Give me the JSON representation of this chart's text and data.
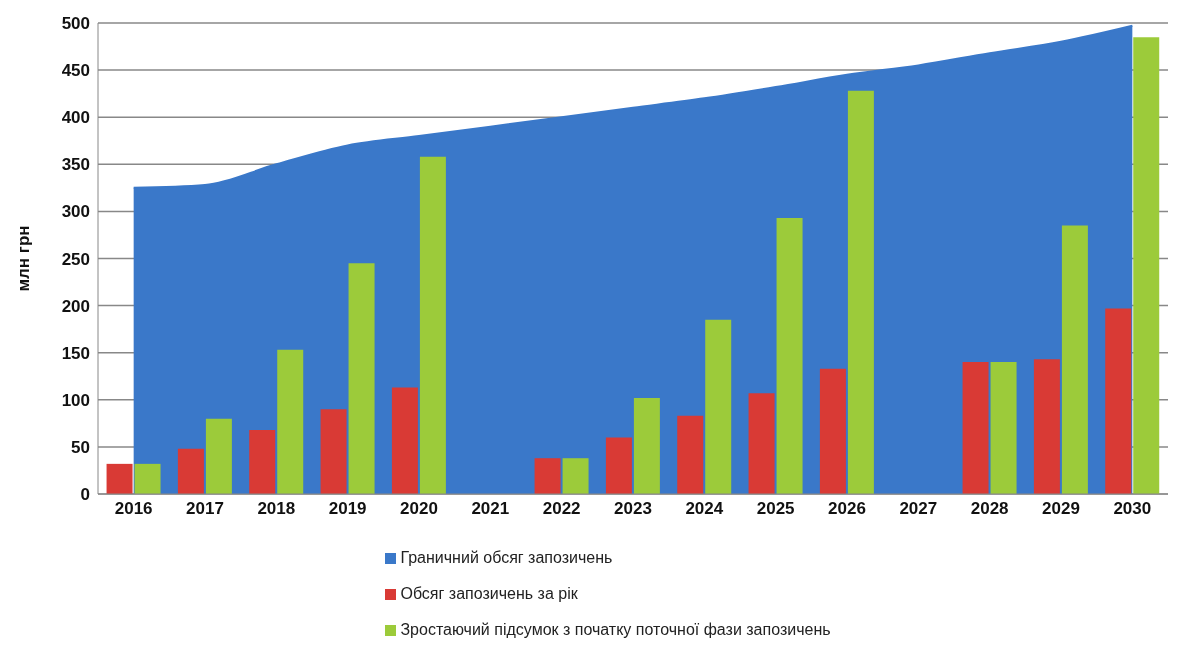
{
  "chart_data": {
    "type": "bar",
    "ylabel": "млн грн",
    "categories": [
      "2016",
      "2017",
      "2018",
      "2019",
      "2020",
      "2021",
      "2022",
      "2023",
      "2024",
      "2025",
      "2026",
      "2027",
      "2028",
      "2029",
      "2030"
    ],
    "series": [
      {
        "name": "Граничний обсяг запозичень",
        "type": "area",
        "color": "#3a78c9",
        "values": [
          325,
          328,
          350,
          370,
          380,
          390,
          400,
          410,
          420,
          432,
          445,
          455,
          468,
          480,
          497
        ]
      },
      {
        "name": "Обсяг запозичень за рік",
        "color": "#d93a35",
        "values": [
          32,
          48,
          68,
          90,
          113,
          null,
          38,
          60,
          83,
          107,
          133,
          null,
          140,
          143,
          197
        ]
      },
      {
        "name": "Зростаючий підсумок з початку поточної фази запозичень",
        "color": "#9ccb3a",
        "values": [
          32,
          80,
          153,
          245,
          358,
          null,
          38,
          102,
          185,
          293,
          428,
          null,
          140,
          285,
          485
        ]
      }
    ],
    "ylim": [
      0,
      500
    ],
    "yticks": [
      0,
      50,
      100,
      150,
      200,
      250,
      300,
      350,
      400,
      450,
      500
    ],
    "grid": "y",
    "legend": "bottom"
  }
}
